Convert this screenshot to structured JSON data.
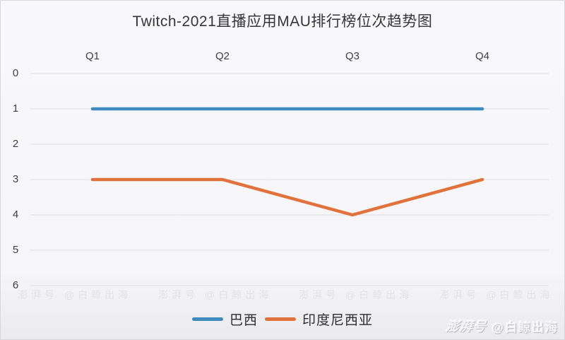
{
  "chart_data": {
    "type": "line",
    "title": "Twitch-2021直播应用MAU排行榜位次趋势图",
    "categories": [
      "Q1",
      "Q2",
      "Q3",
      "Q4"
    ],
    "series": [
      {
        "name": "巴西",
        "color": "#3d8bbf",
        "values": [
          1,
          1,
          1,
          1
        ]
      },
      {
        "name": "印度尼西亚",
        "color": "#e2723c",
        "values": [
          3,
          3,
          4,
          3
        ]
      }
    ],
    "yticks": [
      0,
      1,
      2,
      3,
      4,
      5,
      6
    ],
    "xlabel": "",
    "ylabel": "",
    "ylim": [
      0,
      6
    ],
    "y_direction": "down",
    "x_axis_position": "top",
    "grid": "horizontal",
    "gridline_color": "#e4e4e8",
    "legend_position": "bottom"
  },
  "watermark": {
    "brand": "澎湃号",
    "handle": "@白鲸出海"
  }
}
